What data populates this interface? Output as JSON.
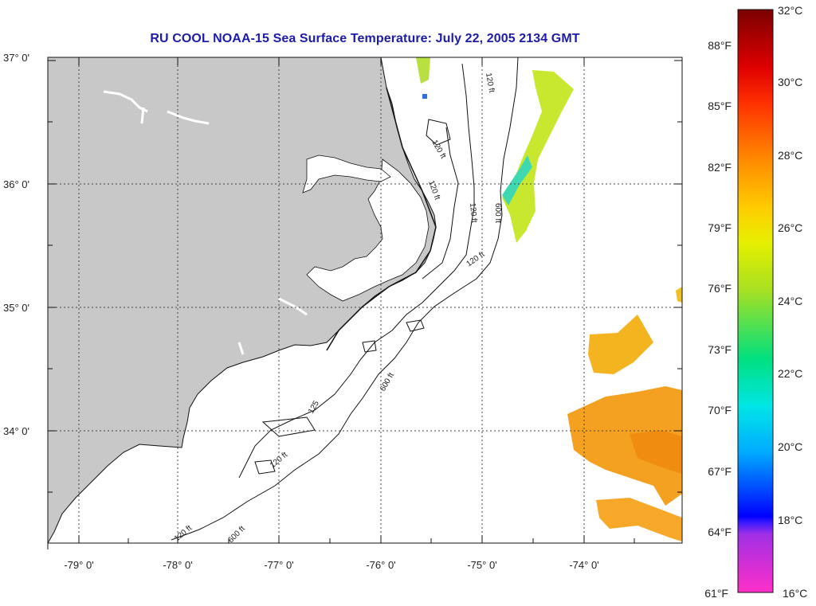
{
  "title": "RU COOL  NOAA-15  Sea Surface Temperature:  July 22, 2005 2134 GMT",
  "map": {
    "lat_labels": [
      "37° 0'",
      "36° 0'",
      "35° 0'",
      "34° 0'"
    ],
    "lon_labels": [
      "-79° 0'",
      "-78° 0'",
      "-77° 0'",
      "-76° 0'",
      "-75° 0'",
      "-74° 0'"
    ],
    "contour_labels": [
      "120 ft",
      "120 ft",
      "120 ft",
      "600 ft",
      "120 ft",
      "120 ft",
      "600 ft",
      "125",
      "120 ft",
      "120 ft",
      "600 ft"
    ],
    "land_color": "#c8c8c8",
    "grid_style": "dotted"
  },
  "colorbar": {
    "fahrenheit_labels": [
      "88°F",
      "85°F",
      "82°F",
      "79°F",
      "76°F",
      "73°F",
      "70°F",
      "67°F",
      "64°F",
      "61°F"
    ],
    "celsius_labels": [
      "32°C",
      "30°C",
      "28°C",
      "26°C",
      "24°C",
      "22°C",
      "20°C",
      "18°C",
      "16°C"
    ],
    "stops": [
      "#ff2fc8",
      "#a02fe6",
      "#0000ff",
      "#00aaff",
      "#00e6e6",
      "#00e080",
      "#80e020",
      "#e6f000",
      "#ffcc00",
      "#ff8c00",
      "#ff3000",
      "#ff0000",
      "#b00000",
      "#7a0000"
    ]
  }
}
